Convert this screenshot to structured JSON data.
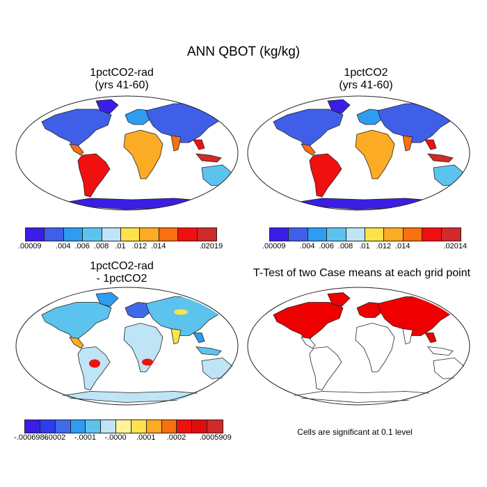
{
  "title": "ANN QBOT (kg/kg)",
  "panels": [
    {
      "id": "p1",
      "title_line1": "1pctCO2-rad",
      "title_line2": "(yrs 41-60)"
    },
    {
      "id": "p2",
      "title_line1": "1pctCO2",
      "title_line2": "(yrs 41-60)"
    },
    {
      "id": "p3",
      "title_line1": "1pctCO2-rad",
      "title_line2": "- 1pctCO2"
    },
    {
      "id": "p4",
      "title_line1": "T-Test of two Case means at each grid point",
      "title_line2": ""
    }
  ],
  "colorbars": [
    {
      "id": "cb1",
      "colors": [
        "#3a1ee6",
        "#3f5fe8",
        "#2e9cf0",
        "#5cc3ef",
        "#bfe4f5",
        "#fde24d",
        "#fbab24",
        "#f87010",
        "#f01010",
        "#d12a2a"
      ],
      "labels": [
        ".00009",
        ".004",
        ".006",
        ".008",
        ".01",
        ".012",
        ".014",
        ".02019"
      ],
      "label_boundaries": [
        0,
        2,
        3,
        4,
        5,
        6,
        7,
        9
      ]
    },
    {
      "id": "cb2",
      "colors": [
        "#3a1ee6",
        "#3f5fe8",
        "#2e9cf0",
        "#5cc3ef",
        "#bfe4f5",
        "#fde24d",
        "#fbab24",
        "#f87010",
        "#f01010",
        "#d12a2a"
      ],
      "labels": [
        ".00009",
        ".004",
        ".006",
        ".008",
        ".01",
        ".012",
        ".014",
        ".02014"
      ],
      "label_boundaries": [
        0,
        2,
        3,
        4,
        5,
        6,
        7,
        9
      ]
    },
    {
      "id": "cb3",
      "colors": [
        "#3a1ee6",
        "#2e3cf0",
        "#3f6ae8",
        "#2e9cf0",
        "#5cc3ef",
        "#bfe4f5",
        "#fff49a",
        "#fde24d",
        "#fbab24",
        "#f87010",
        "#f01010",
        "#e00d0d",
        "#d12a2a"
      ],
      "labels": [
        "-.0006986",
        "-.0002",
        "-.0001",
        "-.0000",
        ".0001",
        ".0002",
        ".0005909"
      ],
      "label_boundaries": [
        0,
        2,
        4,
        6,
        8,
        10,
        12
      ]
    }
  ],
  "footnote": "Cells are significant at 0.1 level",
  "fills": {
    "ocean": "#ffffff",
    "outline": "#222222",
    "sig": "#ee0000"
  }
}
